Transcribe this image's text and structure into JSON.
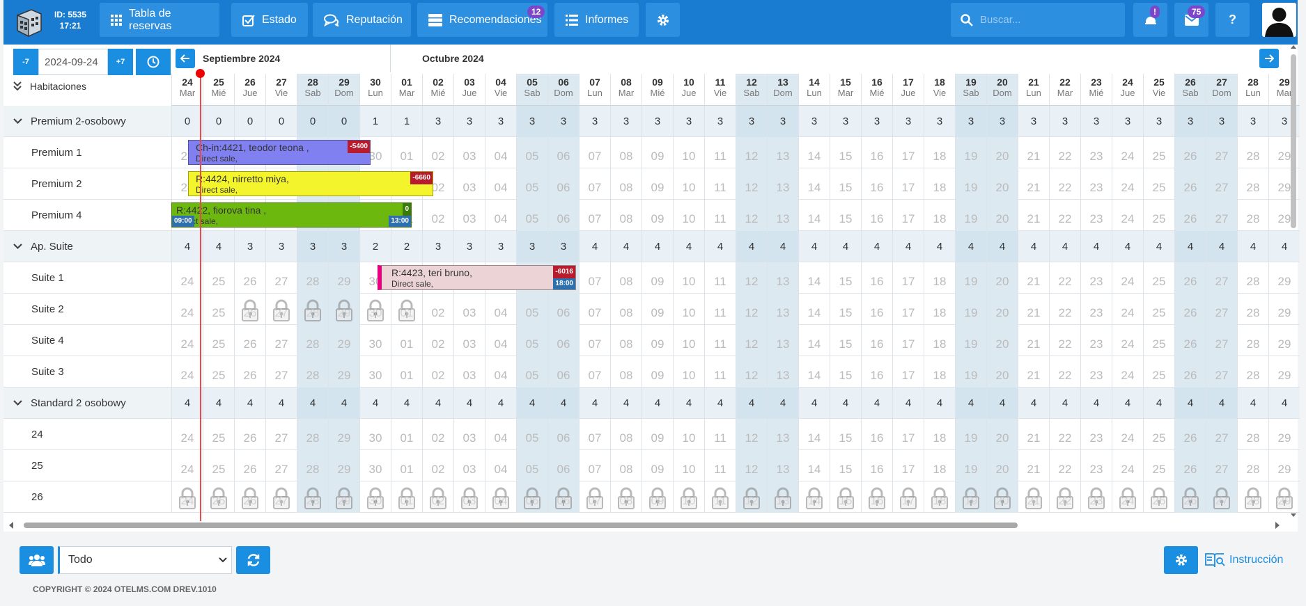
{
  "header": {
    "id_label": "ID: 5535",
    "time": "17:21",
    "nav": [
      {
        "label": "Tabla de reservas",
        "icon": "grid-icon"
      },
      {
        "label": "Estado",
        "icon": "checkbox-icon"
      },
      {
        "label": "Reputación",
        "icon": "chat-icon"
      },
      {
        "label": "Recomendaciones",
        "icon": "server-icon",
        "badge": "12"
      },
      {
        "label": "Informes",
        "icon": "list-icon"
      }
    ],
    "search_placeholder": "Buscar...",
    "alerts_badge": "!",
    "messages_badge": "75",
    "help_label": "?"
  },
  "date_control": {
    "minus": "-7",
    "date": "2024-09-24",
    "plus": "+7"
  },
  "rooms_title": "Habitaciones",
  "months": [
    {
      "label": "Septiembre 2024"
    },
    {
      "label": "Octubre 2024"
    }
  ],
  "days": [
    {
      "n": "24",
      "w": "Mar",
      "we": false
    },
    {
      "n": "25",
      "w": "Mié",
      "we": false
    },
    {
      "n": "26",
      "w": "Jue",
      "we": false
    },
    {
      "n": "27",
      "w": "Vie",
      "we": false
    },
    {
      "n": "28",
      "w": "Sab",
      "we": true
    },
    {
      "n": "29",
      "w": "Dom",
      "we": true
    },
    {
      "n": "30",
      "w": "Lun",
      "we": false
    },
    {
      "n": "01",
      "w": "Mar",
      "we": false
    },
    {
      "n": "02",
      "w": "Mié",
      "we": false
    },
    {
      "n": "03",
      "w": "Jue",
      "we": false
    },
    {
      "n": "04",
      "w": "Vie",
      "we": false
    },
    {
      "n": "05",
      "w": "Sab",
      "we": true
    },
    {
      "n": "06",
      "w": "Dom",
      "we": true
    },
    {
      "n": "07",
      "w": "Lun",
      "we": false
    },
    {
      "n": "08",
      "w": "Mar",
      "we": false
    },
    {
      "n": "09",
      "w": "Mié",
      "we": false
    },
    {
      "n": "10",
      "w": "Jue",
      "we": false
    },
    {
      "n": "11",
      "w": "Vie",
      "we": false
    },
    {
      "n": "12",
      "w": "Sab",
      "we": true
    },
    {
      "n": "13",
      "w": "Dom",
      "we": true
    },
    {
      "n": "14",
      "w": "Lun",
      "we": false
    },
    {
      "n": "15",
      "w": "Mar",
      "we": false
    },
    {
      "n": "16",
      "w": "Mié",
      "we": false
    },
    {
      "n": "17",
      "w": "Jue",
      "we": false
    },
    {
      "n": "18",
      "w": "Vie",
      "we": false
    },
    {
      "n": "19",
      "w": "Sab",
      "we": true
    },
    {
      "n": "20",
      "w": "Dom",
      "we": true
    },
    {
      "n": "21",
      "w": "Lun",
      "we": false
    },
    {
      "n": "22",
      "w": "Mar",
      "we": false
    },
    {
      "n": "23",
      "w": "Mié",
      "we": false
    },
    {
      "n": "24",
      "w": "Jue",
      "we": false
    },
    {
      "n": "25",
      "w": "Vie",
      "we": false
    },
    {
      "n": "26",
      "w": "Sab",
      "we": true
    },
    {
      "n": "27",
      "w": "Dom",
      "we": true
    },
    {
      "n": "28",
      "w": "Lun",
      "we": false
    },
    {
      "n": "29",
      "w": "Mar",
      "we": false
    }
  ],
  "rows": [
    {
      "type": "category",
      "label": "Premium 2-osobowy",
      "counts": [
        "0",
        "0",
        "0",
        "0",
        "0",
        "0",
        "1",
        "1",
        "3",
        "3",
        "3",
        "3",
        "3",
        "3",
        "3",
        "3",
        "3",
        "3",
        "3",
        "3",
        "3",
        "3",
        "3",
        "3",
        "3",
        "3",
        "3",
        "3",
        "3",
        "3",
        "3",
        "3",
        "3",
        "3",
        "3",
        "3"
      ]
    },
    {
      "type": "room",
      "label": "Premium 1",
      "locks": []
    },
    {
      "type": "room",
      "label": "Premium 2",
      "locks": []
    },
    {
      "type": "room",
      "label": "Premium 4",
      "locks": []
    },
    {
      "type": "category",
      "label": "Ap. Suite",
      "counts": [
        "4",
        "4",
        "3",
        "3",
        "3",
        "3",
        "2",
        "2",
        "3",
        "3",
        "3",
        "3",
        "3",
        "4",
        "4",
        "4",
        "4",
        "4",
        "4",
        "4",
        "4",
        "4",
        "4",
        "4",
        "4",
        "4",
        "4",
        "4",
        "4",
        "4",
        "4",
        "4",
        "4",
        "4",
        "4",
        "4"
      ]
    },
    {
      "type": "room",
      "label": "Suite 1",
      "locks": []
    },
    {
      "type": "room",
      "label": "Suite 2",
      "locks": [
        2,
        3,
        4,
        5,
        6,
        7
      ]
    },
    {
      "type": "room",
      "label": "Suite 4",
      "locks": []
    },
    {
      "type": "room",
      "label": "Suite 3",
      "locks": []
    },
    {
      "type": "category",
      "label": "Standard 2 osobowy",
      "counts": [
        "4",
        "4",
        "4",
        "4",
        "4",
        "4",
        "4",
        "4",
        "4",
        "4",
        "4",
        "4",
        "4",
        "4",
        "4",
        "4",
        "4",
        "4",
        "4",
        "4",
        "4",
        "4",
        "4",
        "4",
        "4",
        "4",
        "4",
        "4",
        "4",
        "4",
        "4",
        "4",
        "4",
        "4",
        "4",
        "4"
      ]
    },
    {
      "type": "room",
      "label": "24",
      "locks": []
    },
    {
      "type": "room",
      "label": "25",
      "locks": []
    },
    {
      "type": "room",
      "label": "26",
      "locks": [
        0,
        1,
        2,
        3,
        4,
        5,
        6,
        7,
        8,
        9,
        10,
        11,
        12,
        13,
        14,
        15,
        16,
        17,
        18,
        19,
        20,
        21,
        22,
        23,
        24,
        25,
        26,
        27,
        28,
        29,
        30,
        31,
        32,
        33,
        34,
        35
      ]
    }
  ],
  "reservations": [
    {
      "row": 1,
      "text": "Ch-in:4421, teodor teona ,",
      "sub": "Direct sale,",
      "amount": "-5400",
      "color": "#8080f0"
    },
    {
      "row": 2,
      "text": "R:4424, nirretto miya,",
      "sub": "Direct sale,",
      "amount": "-6660",
      "color": "#f4f42c"
    },
    {
      "row": 3,
      "text": "R:4422, fiorova tina ,",
      "sub": "Direct sale,",
      "amount": "0",
      "color": "#6cb80e",
      "time_in": "09:00",
      "time_out": "13:00"
    },
    {
      "row": 5,
      "text": "R:4423, teri bruno,",
      "sub": "Direct sale,",
      "amount": "-6016",
      "color": "#ecd3d6",
      "time_out": "18:00"
    }
  ],
  "footer": {
    "filter_value": "Todo",
    "instruction_label": "Instrucción",
    "copyright": "COPYRIGHT © 2024 OTELMS.COM DREV.1010"
  }
}
